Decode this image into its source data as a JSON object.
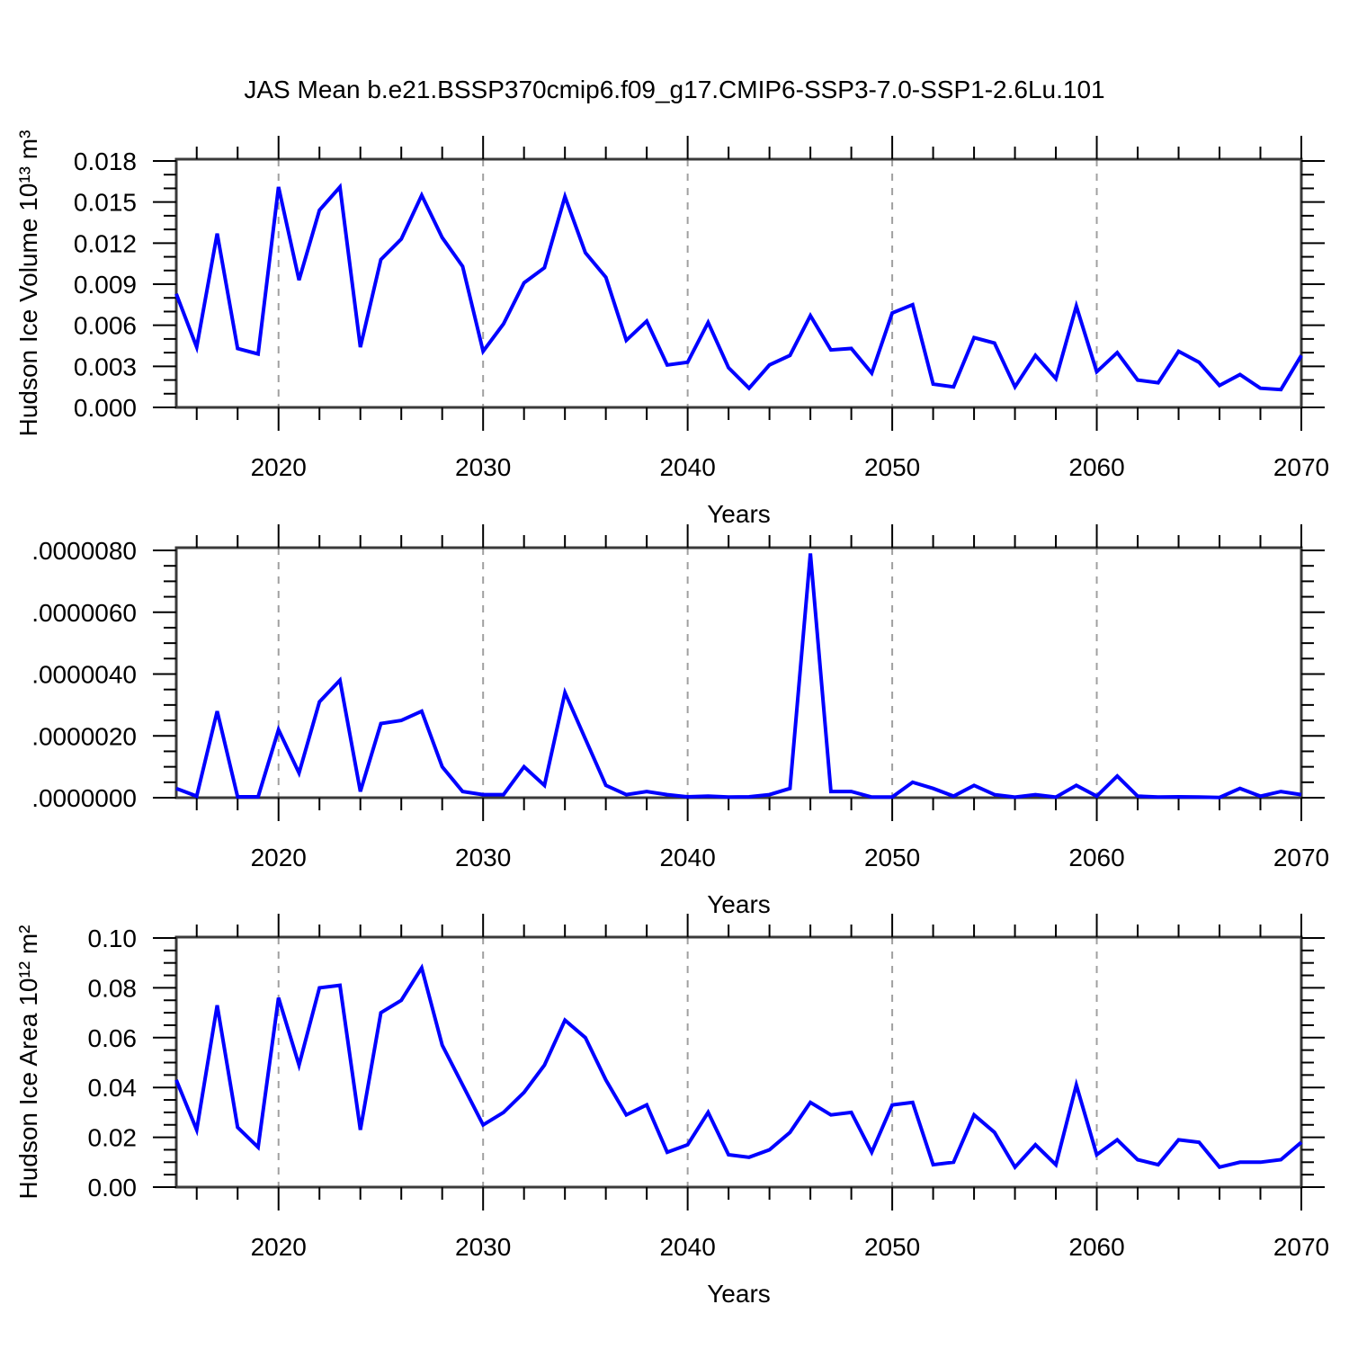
{
  "title": "JAS Mean b.e21.BSSP370cmip6.f09_g17.CMIP6-SSP3-7.0-SSP1-2.6Lu.101",
  "colors": {
    "line": "#0000ff",
    "axis": "#3a3a3a",
    "tick": "#000000",
    "grid": "#a0a0a0",
    "background": "#ffffff"
  },
  "chart_data": [
    {
      "type": "line",
      "ylabel": "Hudson Ice Volume 10¹³ m³",
      "xlabel": "Years",
      "ylim": [
        0,
        0.018
      ],
      "yticks": [
        0.0,
        0.003,
        0.006,
        0.009,
        0.012,
        0.015,
        0.018
      ],
      "ytick_labels": [
        "0.000",
        "0.003",
        "0.006",
        "0.009",
        "0.012",
        "0.015",
        "0.018"
      ],
      "yminor_step": 0.001,
      "xlim": [
        2015,
        2070
      ],
      "xticks": [
        2020,
        2030,
        2040,
        2050,
        2060,
        2070
      ],
      "xtick_labels": [
        "2020",
        "2030",
        "2040",
        "2050",
        "2060",
        "2070"
      ],
      "xminor_step": 2,
      "grid_years": [
        2020,
        2030,
        2040,
        2050,
        2060
      ],
      "grid_on": true,
      "legend": "none",
      "x": [
        2015,
        2016,
        2017,
        2018,
        2019,
        2020,
        2021,
        2022,
        2023,
        2024,
        2025,
        2026,
        2027,
        2028,
        2029,
        2030,
        2031,
        2032,
        2033,
        2034,
        2035,
        2036,
        2037,
        2038,
        2039,
        2040,
        2041,
        2042,
        2043,
        2044,
        2045,
        2046,
        2047,
        2048,
        2049,
        2050,
        2051,
        2052,
        2053,
        2054,
        2055,
        2056,
        2057,
        2058,
        2059,
        2060,
        2061,
        2062,
        2063,
        2064,
        2065,
        2066,
        2067,
        2068,
        2069,
        2070
      ],
      "values": [
        0.0083,
        0.0044,
        0.0127,
        0.0043,
        0.0039,
        0.0161,
        0.0093,
        0.0144,
        0.0161,
        0.0044,
        0.0108,
        0.0123,
        0.0155,
        0.0124,
        0.0103,
        0.0041,
        0.0061,
        0.0091,
        0.0102,
        0.0154,
        0.0113,
        0.0095,
        0.0049,
        0.0063,
        0.0031,
        0.0033,
        0.0062,
        0.0029,
        0.0014,
        0.0031,
        0.0038,
        0.0067,
        0.0042,
        0.0043,
        0.0025,
        0.0069,
        0.0075,
        0.0017,
        0.0015,
        0.0051,
        0.0047,
        0.0015,
        0.0038,
        0.0021,
        0.0074,
        0.0026,
        0.004,
        0.002,
        0.0018,
        0.0041,
        0.0033,
        0.0016,
        0.0024,
        0.0014,
        0.0013,
        0.0038
      ]
    },
    {
      "type": "line",
      "ylabel": "",
      "xlabel": "Years",
      "ylim": [
        0,
        8e-06
      ],
      "yticks": [
        0.0,
        2e-06,
        4e-06,
        6e-06,
        8e-06
      ],
      "ytick_labels": [
        ".0000000",
        ".0000020",
        ".0000040",
        ".0000060",
        ".0000080"
      ],
      "yminor_step": 5e-07,
      "xlim": [
        2015,
        2070
      ],
      "xticks": [
        2020,
        2030,
        2040,
        2050,
        2060,
        2070
      ],
      "xtick_labels": [
        "2020",
        "2030",
        "2040",
        "2050",
        "2060",
        "2070"
      ],
      "xminor_step": 2,
      "grid_years": [
        2020,
        2030,
        2040,
        2050,
        2060
      ],
      "grid_on": true,
      "legend": "none",
      "x": [
        2015,
        2016,
        2017,
        2018,
        2019,
        2020,
        2021,
        2022,
        2023,
        2024,
        2025,
        2026,
        2027,
        2028,
        2029,
        2030,
        2031,
        2032,
        2033,
        2034,
        2035,
        2036,
        2037,
        2038,
        2039,
        2040,
        2041,
        2042,
        2043,
        2044,
        2045,
        2046,
        2047,
        2048,
        2049,
        2050,
        2051,
        2052,
        2053,
        2054,
        2055,
        2056,
        2057,
        2058,
        2059,
        2060,
        2061,
        2062,
        2063,
        2064,
        2065,
        2066,
        2067,
        2068,
        2069,
        2070
      ],
      "values": [
        3e-07,
        5e-08,
        2.8e-06,
        3e-08,
        3e-08,
        2.2e-06,
        8e-07,
        3.1e-06,
        3.8e-06,
        2e-07,
        2.4e-06,
        2.5e-06,
        2.8e-06,
        1e-06,
        2e-07,
        1e-07,
        1e-07,
        1e-06,
        4e-07,
        3.4e-06,
        1.9e-06,
        4e-07,
        1e-07,
        2e-07,
        1e-07,
        3e-08,
        5e-08,
        2e-08,
        3e-08,
        1e-07,
        3e-07,
        7.9e-06,
        2e-07,
        2e-07,
        2e-08,
        2e-08,
        5e-07,
        3e-07,
        5e-08,
        4e-07,
        1e-07,
        2e-08,
        1e-07,
        2e-08,
        4e-07,
        5e-08,
        7e-07,
        5e-08,
        2e-08,
        3e-08,
        2e-08,
        1e-08,
        3e-07,
        5e-08,
        2e-07,
        1e-07
      ]
    },
    {
      "type": "line",
      "ylabel": "Hudson Ice Area 10¹² m²",
      "xlabel": "Years",
      "ylim": [
        0,
        0.1
      ],
      "yticks": [
        0.0,
        0.02,
        0.04,
        0.06,
        0.08,
        0.1
      ],
      "ytick_labels": [
        "0.00",
        "0.02",
        "0.04",
        "0.06",
        "0.08",
        "0.10"
      ],
      "yminor_step": 0.005,
      "xlim": [
        2015,
        2070
      ],
      "xticks": [
        2020,
        2030,
        2040,
        2050,
        2060,
        2070
      ],
      "xtick_labels": [
        "2020",
        "2030",
        "2040",
        "2050",
        "2060",
        "2070"
      ],
      "xminor_step": 2,
      "grid_years": [
        2020,
        2030,
        2040,
        2050,
        2060
      ],
      "grid_on": true,
      "legend": "none",
      "x": [
        2015,
        2016,
        2017,
        2018,
        2019,
        2020,
        2021,
        2022,
        2023,
        2024,
        2025,
        2026,
        2027,
        2028,
        2029,
        2030,
        2031,
        2032,
        2033,
        2034,
        2035,
        2036,
        2037,
        2038,
        2039,
        2040,
        2041,
        2042,
        2043,
        2044,
        2045,
        2046,
        2047,
        2048,
        2049,
        2050,
        2051,
        2052,
        2053,
        2054,
        2055,
        2056,
        2057,
        2058,
        2059,
        2060,
        2061,
        2062,
        2063,
        2064,
        2065,
        2066,
        2067,
        2068,
        2069,
        2070
      ],
      "values": [
        0.043,
        0.023,
        0.073,
        0.024,
        0.016,
        0.076,
        0.049,
        0.08,
        0.081,
        0.023,
        0.07,
        0.075,
        0.088,
        0.057,
        0.041,
        0.025,
        0.03,
        0.038,
        0.049,
        0.067,
        0.06,
        0.043,
        0.029,
        0.033,
        0.014,
        0.017,
        0.03,
        0.013,
        0.012,
        0.015,
        0.022,
        0.034,
        0.029,
        0.03,
        0.014,
        0.033,
        0.034,
        0.009,
        0.01,
        0.029,
        0.022,
        0.008,
        0.017,
        0.009,
        0.041,
        0.013,
        0.019,
        0.011,
        0.009,
        0.019,
        0.018,
        0.008,
        0.01,
        0.01,
        0.011,
        0.018
      ]
    }
  ]
}
